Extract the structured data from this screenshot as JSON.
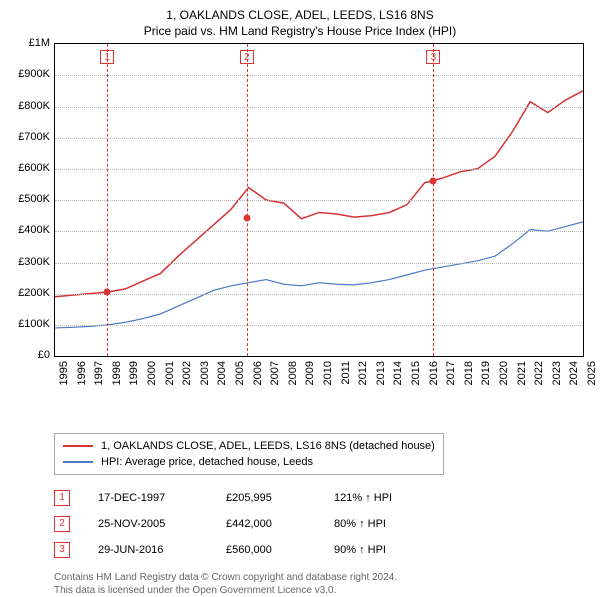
{
  "title_line1": "1, OAKLANDS CLOSE, ADEL, LEEDS, LS16 8NS",
  "title_line2": "Price paid vs. HM Land Registry's House Price Index (HPI)",
  "chart": {
    "type": "line",
    "x_years": [
      1995,
      1996,
      1997,
      1998,
      1999,
      2000,
      2001,
      2002,
      2003,
      2004,
      2005,
      2006,
      2007,
      2008,
      2009,
      2010,
      2011,
      2012,
      2013,
      2014,
      2015,
      2016,
      2017,
      2018,
      2019,
      2020,
      2021,
      2022,
      2023,
      2024,
      2025
    ],
    "xlim": [
      1995,
      2025
    ],
    "ylim": [
      0,
      1000000
    ],
    "ytick_step": 100000,
    "ytick_labels": [
      "£0",
      "£100K",
      "£200K",
      "£300K",
      "£400K",
      "£500K",
      "£600K",
      "£700K",
      "£800K",
      "£900K",
      "£1M"
    ],
    "background_color": "#ffffff",
    "grid_color": "#bbbbbb",
    "border_color": "#000000",
    "series": [
      {
        "name": "price",
        "color": "#d33333",
        "width": 1.5,
        "y": [
          190000,
          195000,
          200000,
          205000,
          215000,
          240000,
          265000,
          320000,
          370000,
          420000,
          470000,
          540000,
          500000,
          490000,
          440000,
          460000,
          455000,
          445000,
          450000,
          460000,
          485000,
          555000,
          570000,
          590000,
          600000,
          640000,
          720000,
          815000,
          780000,
          820000,
          850000
        ]
      },
      {
        "name": "hpi",
        "color": "#4a78c4",
        "width": 1.2,
        "y": [
          90000,
          92000,
          95000,
          100000,
          108000,
          120000,
          135000,
          160000,
          185000,
          210000,
          225000,
          235000,
          245000,
          230000,
          225000,
          235000,
          230000,
          228000,
          235000,
          245000,
          260000,
          275000,
          285000,
          295000,
          305000,
          320000,
          360000,
          405000,
          400000,
          415000,
          430000
        ]
      }
    ],
    "events": [
      {
        "n": 1,
        "year_frac": 1997.96,
        "y": 205995
      },
      {
        "n": 2,
        "year_frac": 2005.9,
        "y": 442000
      },
      {
        "n": 3,
        "year_frac": 2016.5,
        "y": 560000
      }
    ],
    "marker_box_border": "#d33333",
    "dash_color": "#d33333",
    "dot_color": "#d33333"
  },
  "legend": {
    "items": [
      {
        "color": "#d33333",
        "label": "1, OAKLANDS CLOSE, ADEL, LEEDS, LS16 8NS (detached house)"
      },
      {
        "color": "#4a78c4",
        "label": "HPI: Average price, detached house, Leeds"
      }
    ]
  },
  "events_table": [
    {
      "n": "1",
      "date": "17-DEC-1997",
      "price": "£205,995",
      "hpi": "121% ↑ HPI"
    },
    {
      "n": "2",
      "date": "25-NOV-2005",
      "price": "£442,000",
      "hpi": "80% ↑ HPI"
    },
    {
      "n": "3",
      "date": "29-JUN-2016",
      "price": "£560,000",
      "hpi": "90% ↑ HPI"
    }
  ],
  "footer_line1": "Contains HM Land Registry data © Crown copyright and database right 2024.",
  "footer_line2": "This data is licensed under the Open Government Licence v3.0."
}
